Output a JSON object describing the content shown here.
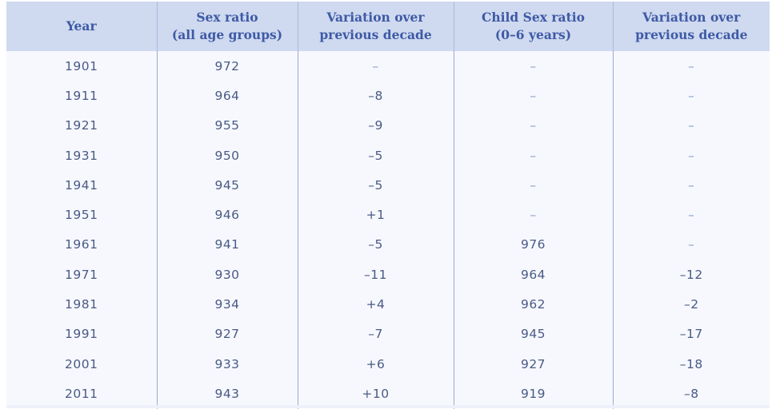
{
  "table": {
    "headers": [
      {
        "line1": "Year",
        "line2": ""
      },
      {
        "line1": "Sex ratio",
        "line2": "(all age groups)"
      },
      {
        "line1": "Variation over",
        "line2": "previous decade"
      },
      {
        "line1": "Child Sex ratio",
        "line2": "(0–6 years)"
      },
      {
        "line1": "Variation over",
        "line2": "previous decade"
      }
    ],
    "rows": [
      [
        "1901",
        "972",
        "–",
        "–",
        "–"
      ],
      [
        "1911",
        "964",
        "–8",
        "–",
        "–"
      ],
      [
        "1921",
        "955",
        "–9",
        "–",
        "–"
      ],
      [
        "1931",
        "950",
        "–5",
        "–",
        "–"
      ],
      [
        "1941",
        "945",
        "–5",
        "–",
        "–"
      ],
      [
        "1951",
        "946",
        "+1",
        "–",
        "–"
      ],
      [
        "1961",
        "941",
        "–5",
        "976",
        "–"
      ],
      [
        "1971",
        "930",
        "–11",
        "964",
        "–12"
      ],
      [
        "1981",
        "934",
        "+4",
        "962",
        "–2"
      ],
      [
        "1991",
        "927",
        "–7",
        "945",
        "–17"
      ],
      [
        "2001",
        "933",
        "+6",
        "927",
        "–18"
      ],
      [
        "2011",
        "943",
        "+10",
        "919",
        "–8"
      ]
    ]
  },
  "colors": {
    "header_bg": "#cfd9ef",
    "header_text": "#3e5aa6",
    "body_text": "#4a5a86",
    "divider": "#99a9d3",
    "body_bg": "#f6f8fd"
  }
}
